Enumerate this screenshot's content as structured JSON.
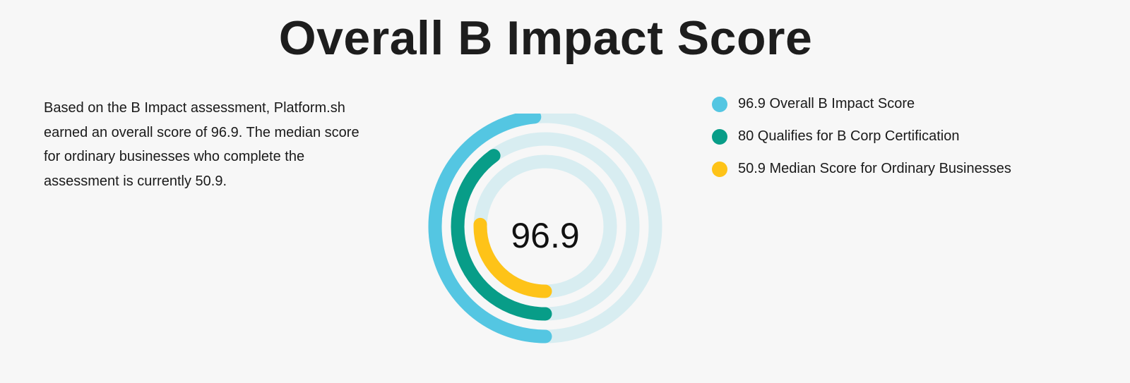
{
  "page": {
    "title": "Overall B Impact Score",
    "description": "Based on the B Impact assessment, Platform.sh earned an overall score of 96.9. The median score for ordinary businesses who complete the assessment is currently 50.9."
  },
  "chart_data": {
    "type": "radial-bar",
    "center_label": "96.9",
    "max": 200,
    "track_color": "#d8edf1",
    "series": [
      {
        "label": "96.9 Overall B Impact Score",
        "value": 96.9,
        "color": "#54c6e2"
      },
      {
        "label": "80 Qualifies for B Corp Certification",
        "value": 80,
        "color": "#089d88"
      },
      {
        "label": "50.9 Median Score for Ordinary Businesses",
        "value": 50.9,
        "color": "#fec318"
      }
    ]
  }
}
